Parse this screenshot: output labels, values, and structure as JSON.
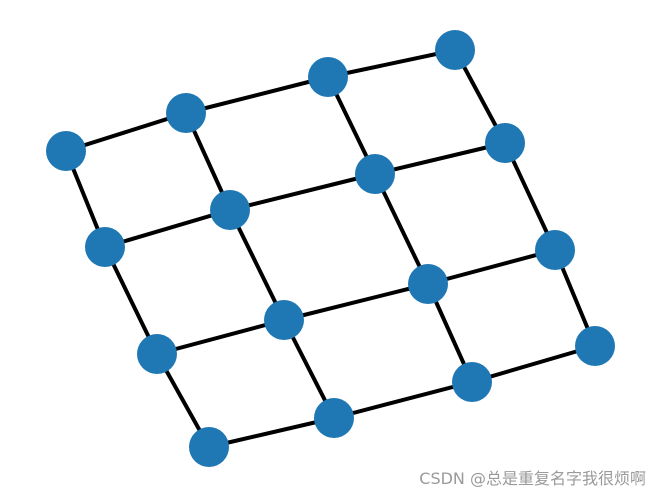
{
  "graph": {
    "type": "grid-graph",
    "rows": 4,
    "cols": 4,
    "node_color": "#1f77b4",
    "edge_color": "#000000"
  },
  "watermark": {
    "text": "CSDN @总是重复名字我很烦啊"
  }
}
